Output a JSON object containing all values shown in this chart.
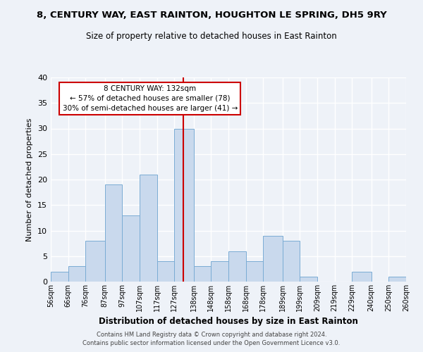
{
  "title": "8, CENTURY WAY, EAST RAINTON, HOUGHTON LE SPRING, DH5 9RY",
  "subtitle": "Size of property relative to detached houses in East Rainton",
  "xlabel": "Distribution of detached houses by size in East Rainton",
  "ylabel": "Number of detached properties",
  "bin_labels": [
    "56sqm",
    "66sqm",
    "76sqm",
    "87sqm",
    "97sqm",
    "107sqm",
    "117sqm",
    "127sqm",
    "138sqm",
    "148sqm",
    "158sqm",
    "168sqm",
    "178sqm",
    "189sqm",
    "199sqm",
    "209sqm",
    "219sqm",
    "229sqm",
    "240sqm",
    "250sqm",
    "260sqm"
  ],
  "bin_edges": [
    56,
    66,
    76,
    87,
    97,
    107,
    117,
    127,
    138,
    148,
    158,
    168,
    178,
    189,
    199,
    209,
    219,
    229,
    240,
    250,
    260
  ],
  "counts": [
    2,
    3,
    8,
    19,
    13,
    21,
    4,
    30,
    3,
    4,
    6,
    4,
    9,
    8,
    1,
    0,
    0,
    2,
    0,
    1,
    0
  ],
  "bar_color": "#c9d9ed",
  "bar_edge_color": "#7aacd4",
  "vline_x": 132,
  "vline_color": "#cc0000",
  "ylim": [
    0,
    40
  ],
  "yticks": [
    0,
    5,
    10,
    15,
    20,
    25,
    30,
    35,
    40
  ],
  "annotation_title": "8 CENTURY WAY: 132sqm",
  "annotation_line1": "← 57% of detached houses are smaller (78)",
  "annotation_line2": "30% of semi-detached houses are larger (41) →",
  "annotation_box_color": "#ffffff",
  "annotation_box_edge": "#cc0000",
  "footnote1": "Contains HM Land Registry data © Crown copyright and database right 2024.",
  "footnote2": "Contains public sector information licensed under the Open Government Licence v3.0.",
  "background_color": "#eef2f8",
  "grid_color": "#ffffff"
}
